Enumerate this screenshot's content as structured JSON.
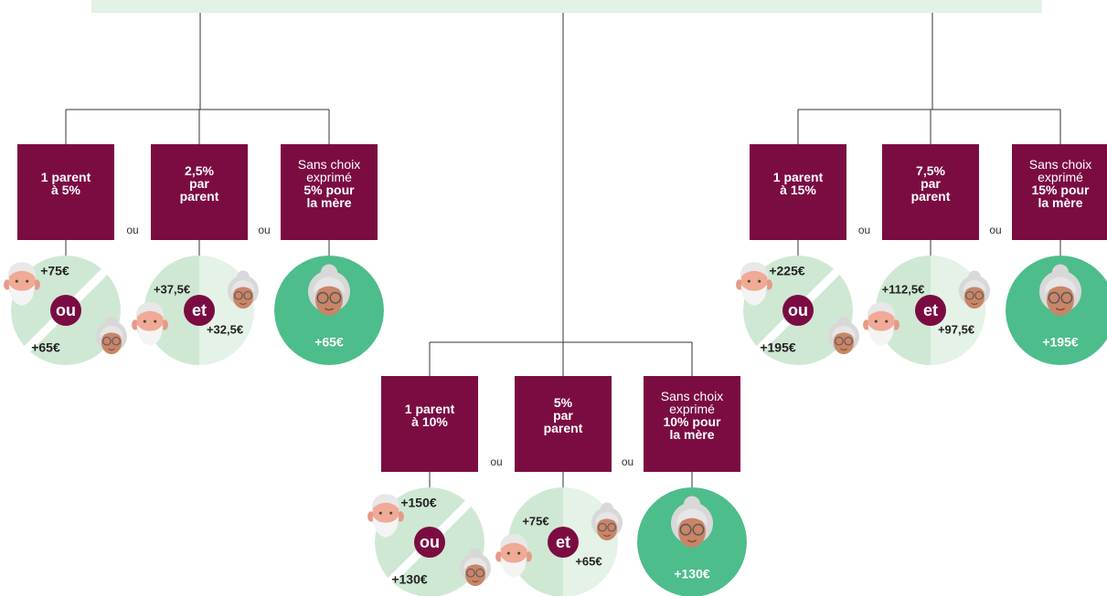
{
  "groups": [
    {
      "separators": [
        "ou",
        "ou"
      ],
      "options": [
        {
          "box": [
            {
              "text": "1 parent",
              "bold": true
            },
            {
              "text": "à 5%",
              "bold": true
            }
          ],
          "joiner": "ou",
          "amounts": [
            "+75€",
            "+65€"
          ]
        },
        {
          "box": [
            {
              "text": "2,5%",
              "bold": true
            },
            {
              "text": "par",
              "bold": true
            },
            {
              "text": "parent",
              "bold": true
            }
          ],
          "joiner": "et",
          "amounts": [
            "+37,5€",
            "+32,5€"
          ]
        },
        {
          "box": [
            {
              "text": "Sans choix",
              "bold": false
            },
            {
              "text": "exprimé",
              "bold": false
            },
            {
              "text": "5% pour",
              "bold": true
            },
            {
              "text": "la mère",
              "bold": true
            }
          ],
          "amounts": [
            "+65€"
          ]
        }
      ]
    },
    {
      "separators": [
        "ou",
        "ou"
      ],
      "options": [
        {
          "box": [
            {
              "text": "1 parent",
              "bold": true
            },
            {
              "text": "à 10%",
              "bold": true
            }
          ],
          "joiner": "ou",
          "amounts": [
            "+150€",
            "+130€"
          ]
        },
        {
          "box": [
            {
              "text": "5%",
              "bold": true
            },
            {
              "text": "par",
              "bold": true
            },
            {
              "text": "parent",
              "bold": true
            }
          ],
          "joiner": "et",
          "amounts": [
            "+75€",
            "+65€"
          ]
        },
        {
          "box": [
            {
              "text": "Sans choix",
              "bold": false
            },
            {
              "text": "exprimé",
              "bold": false
            },
            {
              "text": "10% pour",
              "bold": true
            },
            {
              "text": "la mère",
              "bold": true
            }
          ],
          "amounts": [
            "+130€"
          ]
        }
      ]
    },
    {
      "separators": [
        "ou",
        "ou"
      ],
      "options": [
        {
          "box": [
            {
              "text": "1 parent",
              "bold": true
            },
            {
              "text": "à 15%",
              "bold": true
            }
          ],
          "joiner": "ou",
          "amounts": [
            "+225€",
            "+195€"
          ]
        },
        {
          "box": [
            {
              "text": "7,5%",
              "bold": true
            },
            {
              "text": "par",
              "bold": true
            },
            {
              "text": "parent",
              "bold": true
            }
          ],
          "joiner": "et",
          "amounts": [
            "+112,5€",
            "+97,5€"
          ]
        },
        {
          "box": [
            {
              "text": "Sans choix",
              "bold": false
            },
            {
              "text": "exprimé",
              "bold": false
            },
            {
              "text": "15% pour",
              "bold": true
            },
            {
              "text": "la mère",
              "bold": true
            }
          ],
          "amounts": [
            "+195€"
          ]
        }
      ]
    }
  ]
}
